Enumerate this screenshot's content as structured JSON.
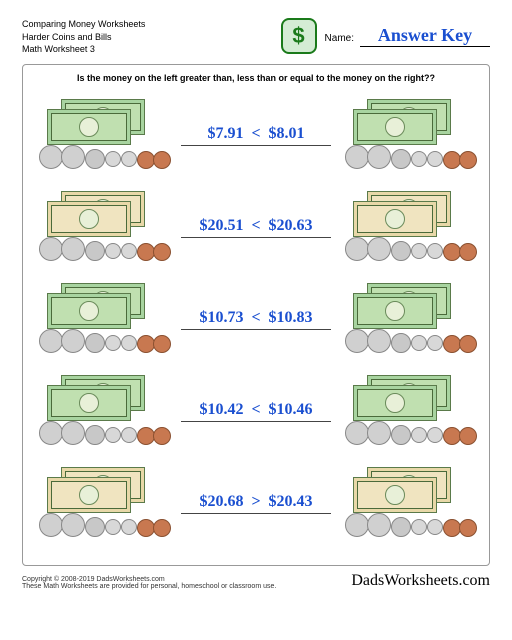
{
  "header": {
    "line1": "Comparing Money Worksheets",
    "line2": "Harder Coins and Bills",
    "line3": "Math Worksheet 3",
    "name_label": "Name:",
    "answer_key": "Answer Key"
  },
  "instruction": "Is the money on the left greater than, less than or equal to the money on the right??",
  "problems": [
    {
      "left_amount": "$7.91",
      "op": "<",
      "right_amount": "$8.01"
    },
    {
      "left_amount": "$20.51",
      "op": "<",
      "right_amount": "$20.63"
    },
    {
      "left_amount": "$10.73",
      "op": "<",
      "right_amount": "$10.83"
    },
    {
      "left_amount": "$10.42",
      "op": "<",
      "right_amount": "$10.46"
    },
    {
      "left_amount": "$20.68",
      "op": ">",
      "right_amount": "$20.43"
    }
  ],
  "footer": {
    "copyright": "Copyright © 2008-2019 DadsWorksheets.com",
    "note": "These Math Worksheets are provided for personal, homeschool or classroom use.",
    "brand": "DadsWorksheets.com"
  },
  "colors": {
    "answer_blue": "#1a4fd0",
    "bill_green": "#a8d4a0",
    "icon_green": "#1a7a1a"
  }
}
